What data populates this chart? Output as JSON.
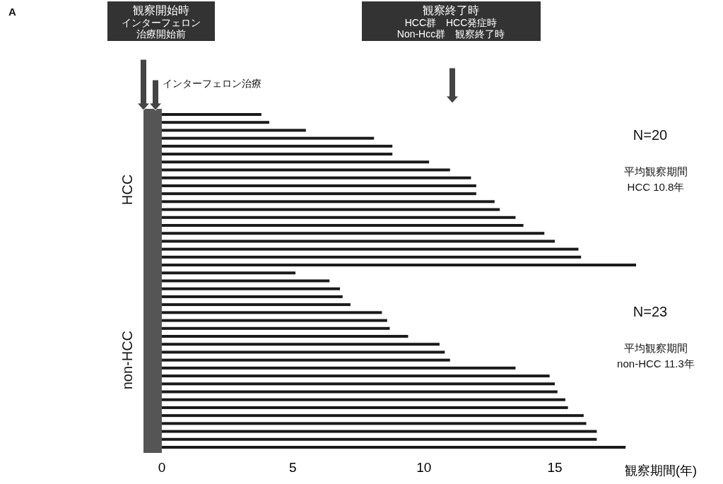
{
  "chart_data": {
    "type": "bar",
    "orientation": "horizontal",
    "xlabel": "観察期間(年)",
    "categories": [
      null,
      null,
      null,
      null,
      null,
      null,
      null,
      null,
      null,
      null,
      null,
      null,
      null,
      null,
      null,
      null,
      null,
      null,
      null,
      null,
      null,
      null,
      null,
      null,
      null,
      null,
      null,
      null,
      null,
      null,
      null,
      null,
      null,
      null,
      null,
      null,
      null,
      null,
      null,
      null,
      null,
      null,
      null
    ],
    "values": [
      3.8,
      4.1,
      5.5,
      8.1,
      8.8,
      8.8,
      10.2,
      11.0,
      11.8,
      12.0,
      12.0,
      12.7,
      12.9,
      13.5,
      13.8,
      14.6,
      15.0,
      15.9,
      16.0,
      18.1,
      5.1,
      6.4,
      6.8,
      6.9,
      7.2,
      8.4,
      8.6,
      8.7,
      9.4,
      10.6,
      10.8,
      11.0,
      13.5,
      14.8,
      15.0,
      15.1,
      15.4,
      15.5,
      16.1,
      16.2,
      16.6,
      16.6,
      17.7
    ],
    "color": "#1a1a1a",
    "xlim": [
      -0.7,
      18.1
    ],
    "xticks": [
      0,
      5,
      10,
      15
    ],
    "tick_labels": "x",
    "grid": false,
    "bands": [
      {
        "axis": "x",
        "from": -0.7,
        "to": 0,
        "color": "#555555"
      }
    ],
    "annotations": [
      "A",
      "観察開始時",
      "インターフェロン",
      "治療開始前",
      "インターフェロン治療",
      "観察終了時",
      "HCC群　HCC発症時",
      "Non-Hcc群　観察終了時",
      "N=20",
      "平均観察期間",
      "HCC 10.8年",
      "N=23",
      "平均観察期間",
      "non-HCC 11.3年",
      "HCC",
      "non-HCC"
    ]
  }
}
